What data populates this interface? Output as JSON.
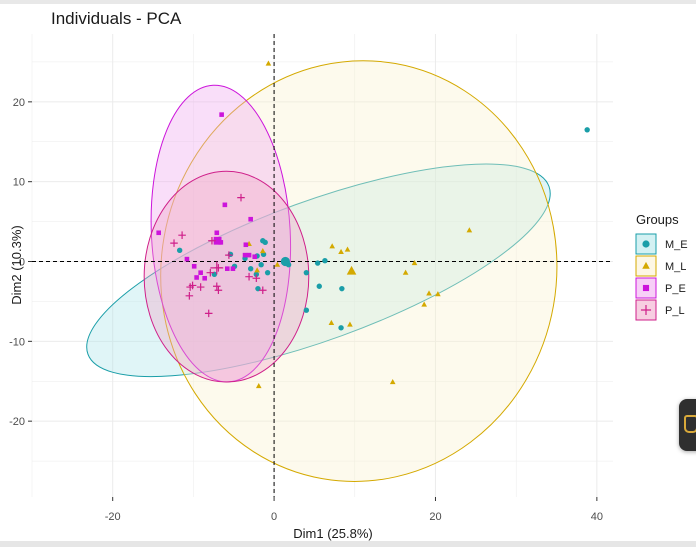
{
  "chart_data": {
    "type": "scatter",
    "title": "Individuals - PCA",
    "xlabel": "Dim1 (25.8%)",
    "ylabel": "Dim2 (10.3%)",
    "xlim": [
      -30,
      42
    ],
    "ylim": [
      -29.5,
      28.5
    ],
    "xticks": [
      -20,
      0,
      20,
      40
    ],
    "yticks": [
      -20,
      -10,
      0,
      10,
      20
    ],
    "tick_labels_x": [
      "-20",
      "0",
      "20",
      "40"
    ],
    "tick_labels_y": [
      "-20",
      "-10",
      "0",
      "10",
      "20"
    ],
    "grid": true,
    "reference_lines": {
      "x": 0,
      "y": 0,
      "style": "dashed"
    },
    "legend": {
      "title": "Groups",
      "position": "right"
    },
    "series": [
      {
        "name": "M_E",
        "color": "#1a9ea8",
        "marker": "circle",
        "points": [
          [
            38.8,
            16.5
          ],
          [
            -11.7,
            1.4
          ],
          [
            -7.4,
            -1.6
          ],
          [
            -5.4,
            0.9
          ],
          [
            -4.9,
            -0.6
          ],
          [
            -3.6,
            0.4
          ],
          [
            -2.9,
            -0.9
          ],
          [
            -2.1,
            0.7
          ],
          [
            -1.6,
            -0.4
          ],
          [
            -1.4,
            2.6
          ],
          [
            -1.1,
            2.4
          ],
          [
            -1.3,
            0.9
          ],
          [
            -2.2,
            -1.6
          ],
          [
            -2.0,
            -3.4
          ],
          [
            -0.8,
            -1.4
          ],
          [
            1.8,
            -0.4
          ],
          [
            4.0,
            -1.4
          ],
          [
            5.4,
            -0.2
          ],
          [
            6.3,
            0.1
          ],
          [
            5.6,
            -3.1
          ],
          [
            8.4,
            -3.4
          ],
          [
            4.0,
            -6.1
          ],
          [
            8.3,
            -8.3
          ]
        ],
        "centroid": [
          1.4,
          0.0
        ]
      },
      {
        "name": "M_L",
        "color": "#d4a900",
        "marker": "triangle",
        "points": [
          [
            -0.7,
            24.8
          ],
          [
            -3.1,
            2.2
          ],
          [
            -1.4,
            1.3
          ],
          [
            -2.1,
            -1.1
          ],
          [
            0.4,
            -0.4
          ],
          [
            7.2,
            1.9
          ],
          [
            8.3,
            1.2
          ],
          [
            9.1,
            1.5
          ],
          [
            17.4,
            -0.2
          ],
          [
            16.3,
            -1.4
          ],
          [
            19.2,
            -4.0
          ],
          [
            20.3,
            -4.1
          ],
          [
            18.6,
            -5.4
          ],
          [
            24.2,
            3.9
          ],
          [
            7.1,
            -7.7
          ],
          [
            9.4,
            -7.9
          ],
          [
            -1.9,
            -15.6
          ],
          [
            14.7,
            -15.1
          ]
        ],
        "centroid": [
          9.6,
          -1.2
        ]
      },
      {
        "name": "P_E",
        "color": "#cc14db",
        "marker": "square",
        "points": [
          [
            -6.5,
            18.4
          ],
          [
            -14.3,
            3.6
          ],
          [
            -10.8,
            0.3
          ],
          [
            -7.1,
            3.6
          ],
          [
            -6.6,
            2.4
          ],
          [
            -3.5,
            2.1
          ],
          [
            -2.9,
            5.3
          ],
          [
            -9.1,
            -1.4
          ],
          [
            -9.6,
            -2.0
          ],
          [
            -8.6,
            -2.1
          ],
          [
            -5.8,
            -0.9
          ],
          [
            -5.1,
            -0.9
          ],
          [
            -3.6,
            0.8
          ],
          [
            -3.1,
            0.8
          ],
          [
            -2.4,
            0.6
          ],
          [
            -9.9,
            -0.6
          ],
          [
            -6.1,
            7.1
          ]
        ],
        "centroid": [
          -7.0,
          2.6
        ]
      },
      {
        "name": "P_L",
        "color": "#cf1f8a",
        "marker": "cross",
        "points": [
          [
            -4.1,
            8.0
          ],
          [
            -11.4,
            3.3
          ],
          [
            -12.4,
            2.3
          ],
          [
            -10.1,
            -3.0
          ],
          [
            -10.4,
            -3.2
          ],
          [
            -9.1,
            -3.2
          ],
          [
            -7.1,
            -3.1
          ],
          [
            -6.9,
            -3.6
          ],
          [
            -7.9,
            -1.4
          ],
          [
            -6.9,
            -0.8
          ],
          [
            -3.1,
            -1.9
          ],
          [
            -2.2,
            -2.1
          ],
          [
            -1.4,
            -3.6
          ],
          [
            -10.5,
            -4.3
          ],
          [
            -8.1,
            -6.5
          ],
          [
            -7.7,
            2.6
          ],
          [
            -5.6,
            0.8
          ]
        ],
        "centroid": [
          -7.1,
          -0.8
        ]
      }
    ],
    "ellipses": [
      {
        "group": "M_E",
        "cx": 5.5,
        "cy": -1.1,
        "rx": 30.4,
        "ry": 8.7,
        "rotation_deg": 20,
        "fill": "#aee6ea",
        "stroke": "#1a9ea8"
      },
      {
        "group": "M_L",
        "cx": 10.5,
        "cy": -1.2,
        "rx": 24.5,
        "ry": 26.4,
        "rotation_deg": -10,
        "fill": "#fbf1cf",
        "stroke": "#d4a900"
      },
      {
        "group": "P_E",
        "cx": -6.6,
        "cy": 3.5,
        "rx": 8.6,
        "ry": 18.6,
        "rotation_deg": 3,
        "fill": "#f0a7f0",
        "stroke": "#cc14db"
      },
      {
        "group": "P_L",
        "cx": -5.9,
        "cy": -1.9,
        "rx": 10.2,
        "ry": 13.2,
        "rotation_deg": 0,
        "fill": "#f0a5c8",
        "stroke": "#cf1f8a"
      }
    ]
  }
}
